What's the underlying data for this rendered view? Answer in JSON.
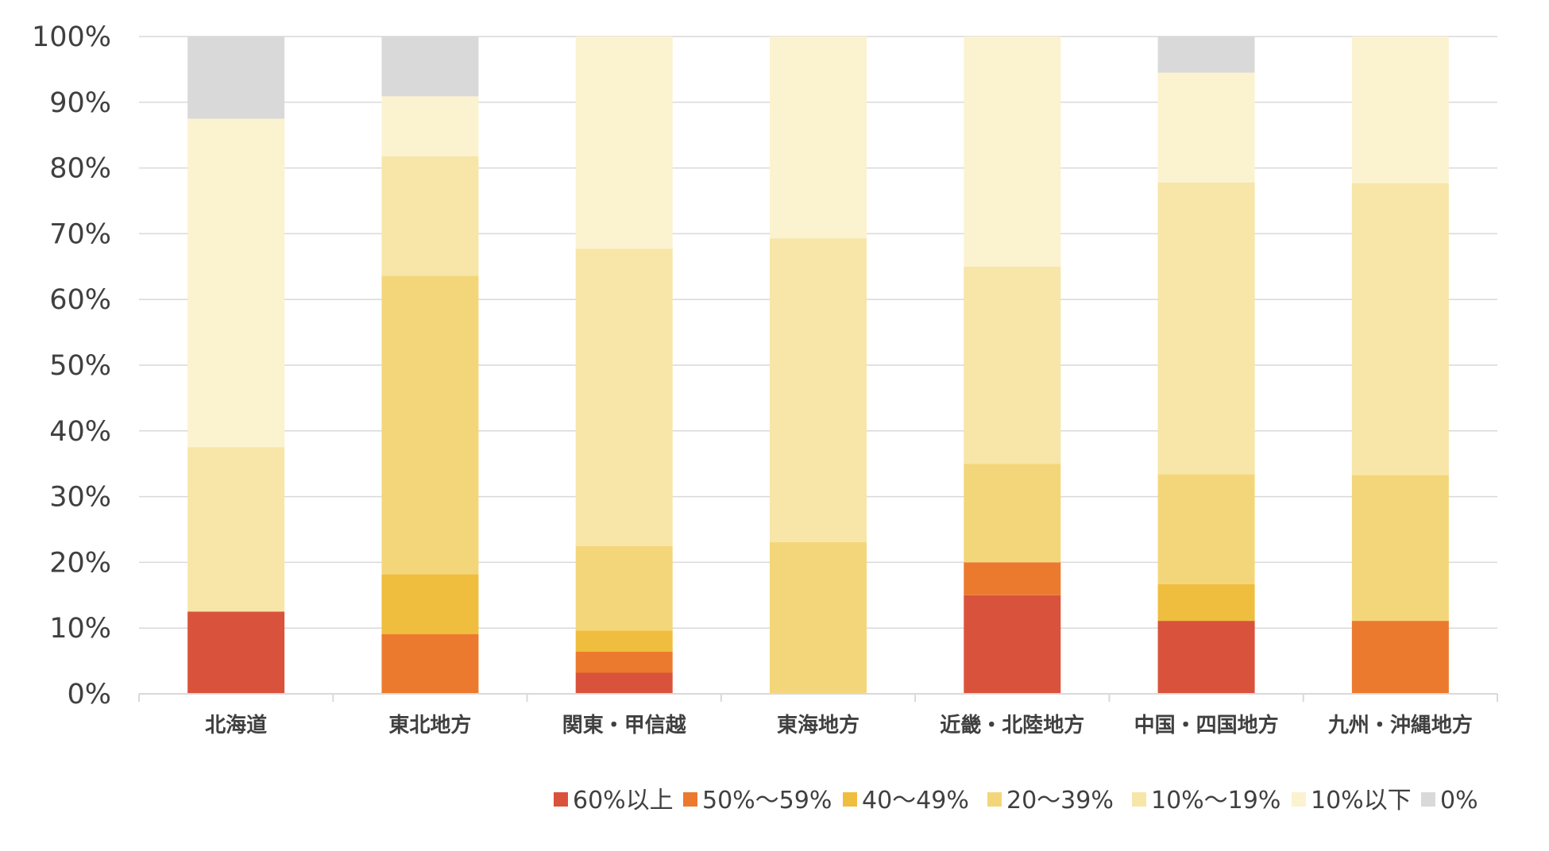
{
  "chart_data": {
    "type": "bar",
    "stacked": true,
    "normalized": true,
    "title": "",
    "xlabel": "",
    "ylabel": "",
    "ylim": [
      0,
      100
    ],
    "y_ticks": [
      "0%",
      "10%",
      "20%",
      "30%",
      "40%",
      "50%",
      "60%",
      "70%",
      "80%",
      "90%",
      "100%"
    ],
    "grid": true,
    "legend_position": "bottom",
    "categories": [
      "北海道",
      "東北地方",
      "関東・甲信越",
      "東海地方",
      "近畿・北陸地方",
      "中国・四国地方",
      "九州・沖縄地方"
    ],
    "series": [
      {
        "name": "60%以上",
        "color": "#d9533c",
        "values": [
          12.5,
          0,
          3.2,
          0,
          15,
          11.1,
          0
        ]
      },
      {
        "name": "50%〜59%",
        "color": "#ec7a2e",
        "values": [
          0,
          9.1,
          3.2,
          0,
          5,
          0,
          11.1
        ]
      },
      {
        "name": "40〜49%",
        "color": "#efbe3e",
        "values": [
          0,
          9.1,
          3.2,
          0,
          0,
          5.6,
          0
        ]
      },
      {
        "name": "20〜39%",
        "color": "#f4d67a",
        "values": [
          0,
          45.4,
          12.9,
          23.1,
          15,
          16.7,
          22.2
        ]
      },
      {
        "name": "10%〜19%",
        "color": "#f7e6a8",
        "values": [
          25,
          18.2,
          45.2,
          46.2,
          30,
          44.4,
          44.4
        ]
      },
      {
        "name": "10%以下",
        "color": "#fbf2d0",
        "values": [
          50,
          9.1,
          32.3,
          30.7,
          35,
          16.7,
          22.3
        ]
      },
      {
        "name": "0%",
        "color": "#d9d9d9",
        "values": [
          12.5,
          9.1,
          0,
          0,
          0,
          5.5,
          0
        ]
      }
    ]
  }
}
